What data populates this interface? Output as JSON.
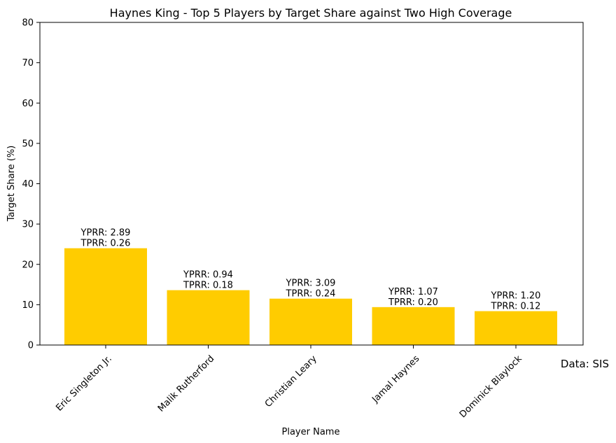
{
  "chart_data": {
    "type": "bar",
    "title": "Haynes King - Top 5 Players by Target Share against Two High Coverage",
    "xlabel": "Player Name",
    "ylabel": "Target Share (%)",
    "ylim": [
      0,
      80
    ],
    "yticks": [
      0,
      10,
      20,
      30,
      40,
      50,
      60,
      70,
      80
    ],
    "grid": false,
    "categories": [
      "Eric Singleton Jr.",
      "Malik Rutherford",
      "Christian Leary",
      "Jamal Haynes",
      "Dominick Blaylock"
    ],
    "values": [
      24.0,
      13.6,
      11.5,
      9.4,
      8.4
    ],
    "bar_labels": [
      {
        "line1": "YPRR: 2.89",
        "line2": "TPRR: 0.26"
      },
      {
        "line1": "YPRR: 0.94",
        "line2": "TPRR: 0.18"
      },
      {
        "line1": "YPRR: 3.09",
        "line2": "TPRR: 0.24"
      },
      {
        "line1": "YPRR: 1.07",
        "line2": "TPRR: 0.20"
      },
      {
        "line1": "YPRR: 1.20",
        "line2": "TPRR: 0.12"
      }
    ],
    "bar_color": "#FFCC00",
    "source_note": "Data: SIS"
  }
}
